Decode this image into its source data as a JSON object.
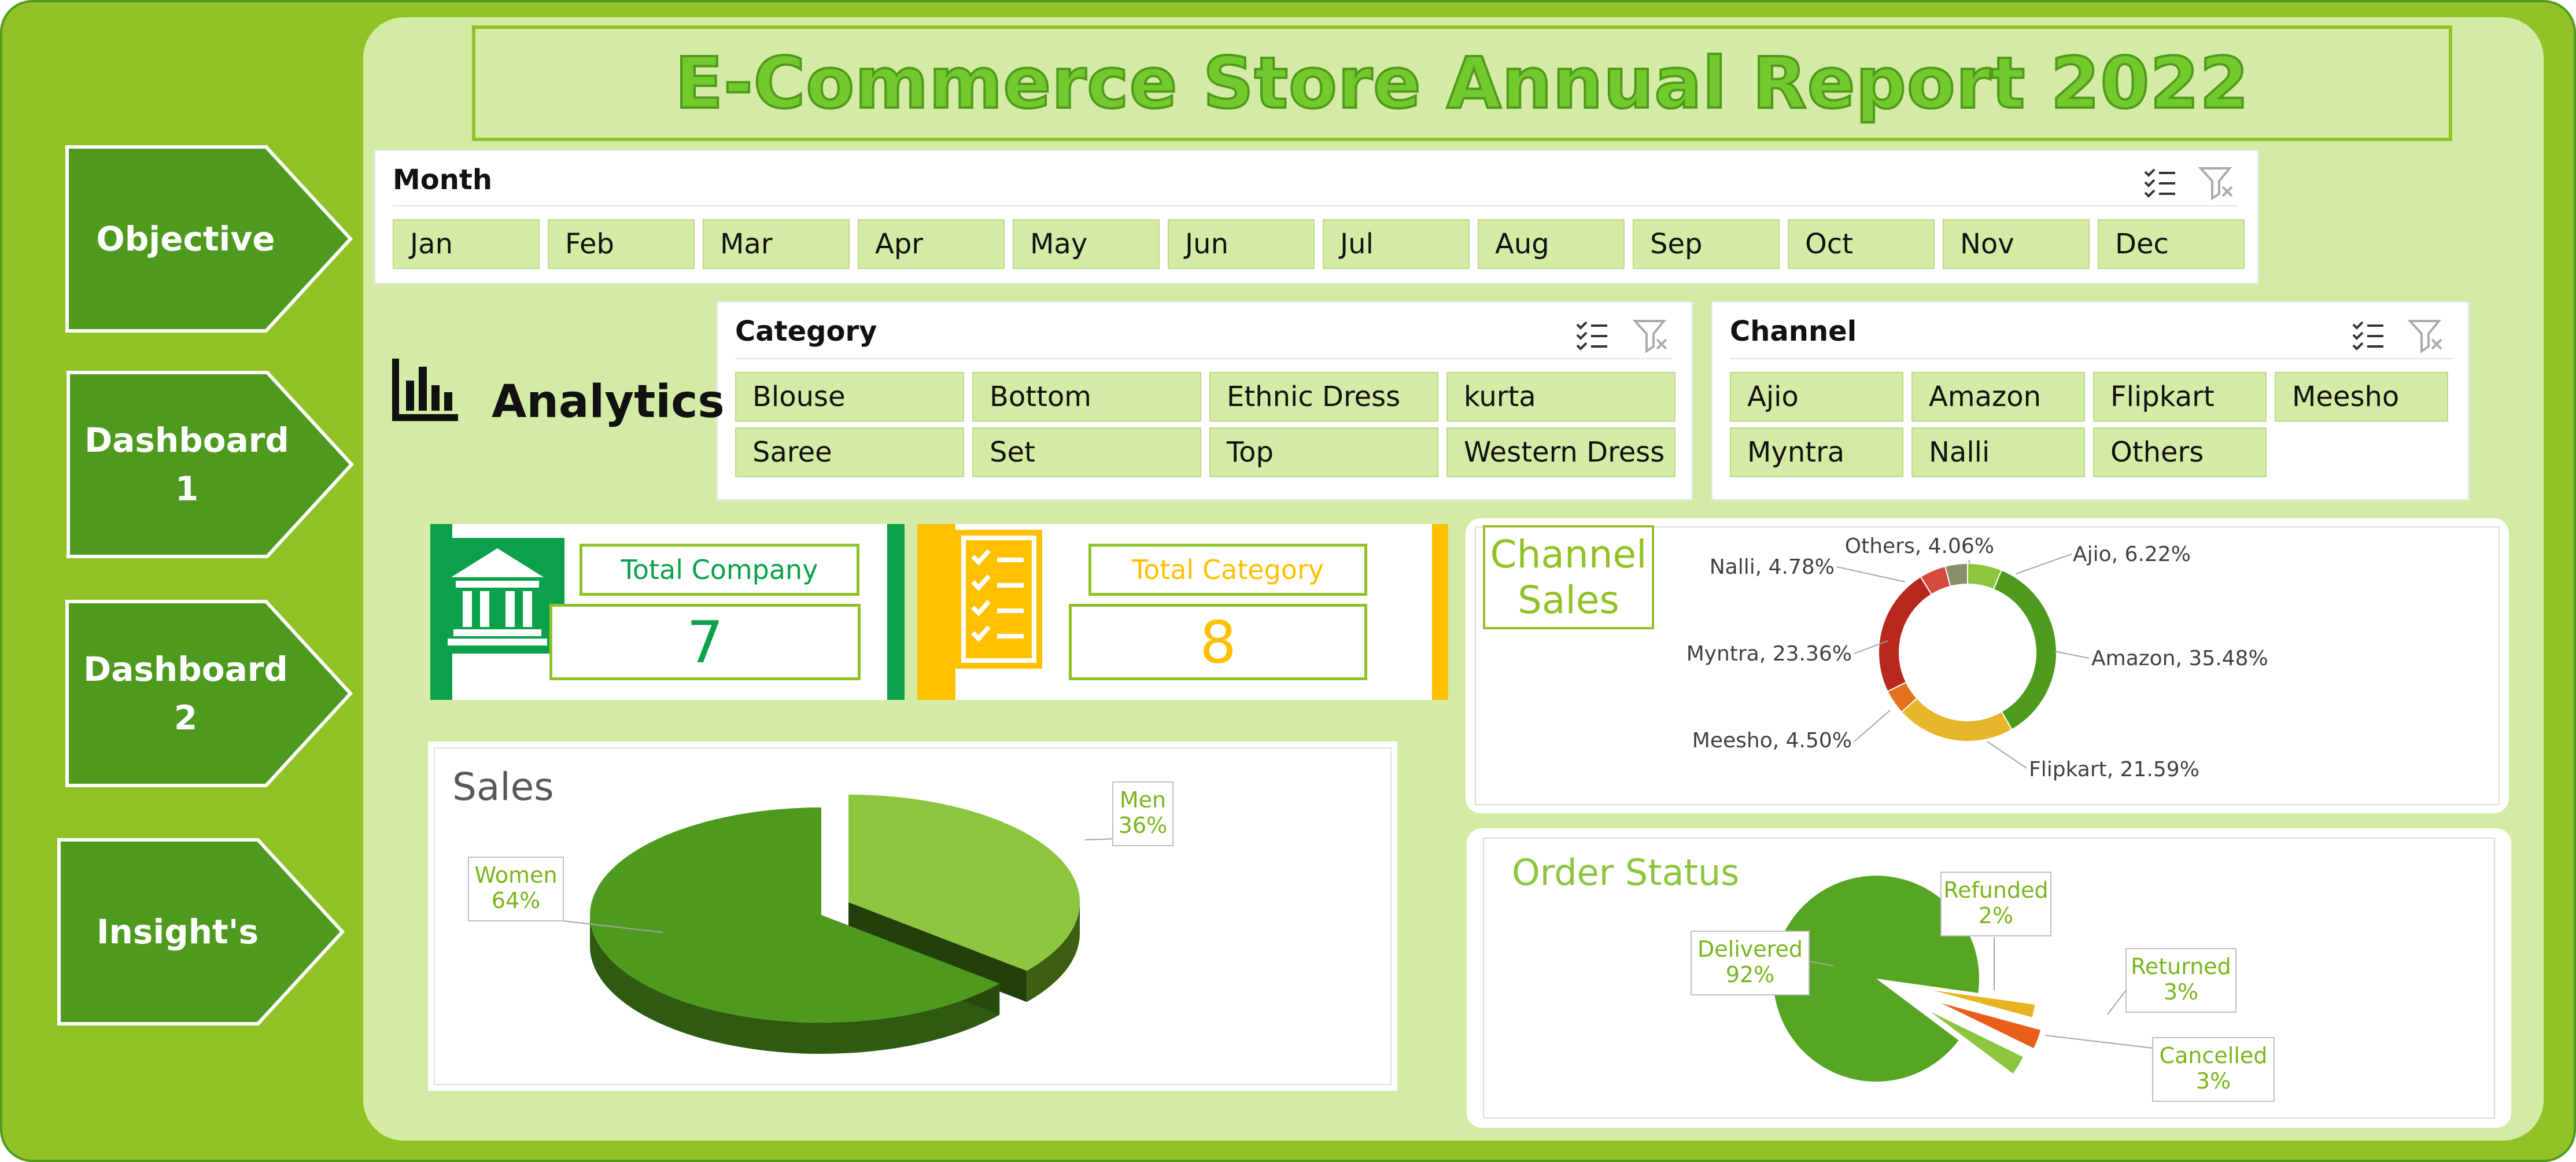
{
  "report": {
    "title": "E-Commerce Store Annual Report 2022"
  },
  "nav": [
    {
      "label": "Objective"
    },
    {
      "label": "Dashboard\n1"
    },
    {
      "label": "Dashboard\n2"
    },
    {
      "label": "Insight's"
    }
  ],
  "slicers": {
    "month": {
      "title": "Month",
      "items": [
        "Jan",
        "Feb",
        "Mar",
        "Apr",
        "May",
        "Jun",
        "Jul",
        "Aug",
        "Sep",
        "Oct",
        "Nov",
        "Dec"
      ]
    },
    "category": {
      "title": "Category",
      "items": [
        "Blouse",
        "Bottom",
        "Ethnic Dress",
        "kurta",
        "Saree",
        "Set",
        "Top",
        "Western Dress"
      ]
    },
    "channel": {
      "title": "Channel",
      "items": [
        "Ajio",
        "Amazon",
        "Flipkart",
        "Meesho",
        "Myntra",
        "Nalli",
        "Others"
      ]
    }
  },
  "analytics": {
    "label": "Analytics",
    "icon": "bar-chart-icon"
  },
  "kpis": {
    "company": {
      "label": "Total Company",
      "value": "7",
      "color": "#0aa14a",
      "icon": "bank-building-icon"
    },
    "category": {
      "label": "Total Category",
      "value": "8",
      "color": "#ffc000",
      "icon": "checklist-icon"
    }
  },
  "colors": {
    "frame": "#90c226",
    "main": "#d4eba5",
    "nav": "#4e9a1f",
    "accent": "#90c226"
  },
  "chart_data": [
    {
      "type": "pie",
      "title": "Sales",
      "categories": [
        "Men",
        "Women"
      ],
      "values": [
        36,
        64
      ],
      "labels": [
        "Men\n36%",
        "Women\n64%"
      ],
      "colors": [
        "#8cc63f",
        "#4e9a1f"
      ]
    },
    {
      "type": "pie",
      "title": "Channel\nSales",
      "categories": [
        "Ajio",
        "Amazon",
        "Flipkart",
        "Meesho",
        "Myntra",
        "Nalli",
        "Others"
      ],
      "values": [
        6.22,
        35.48,
        21.59,
        4.5,
        23.36,
        4.78,
        4.06
      ],
      "labels": [
        "Ajio, 6.22%",
        "Amazon, 35.48%",
        "Flipkart, 21.59%",
        "Meesho, 4.50%",
        "Myntra, 23.36%",
        "Nalli, 4.78%",
        "Others, 4.06%"
      ],
      "colors": [
        "#8cc63f",
        "#4e9a1f",
        "#e7b62a",
        "#e5731e",
        "#b7281f",
        "#d64a3b",
        "#8a8f6a"
      ]
    },
    {
      "type": "pie",
      "title": "Order Status",
      "categories": [
        "Delivered",
        "Refunded",
        "Returned",
        "Cancelled"
      ],
      "values": [
        92,
        2,
        3,
        3
      ],
      "labels": [
        "Delivered\n92%",
        "Refunded\n2%",
        "Returned\n3%",
        "Cancelled\n3%"
      ],
      "colors": [
        "#56a523",
        "#e8b520",
        "#e85f1c",
        "#8cc63f"
      ]
    }
  ]
}
